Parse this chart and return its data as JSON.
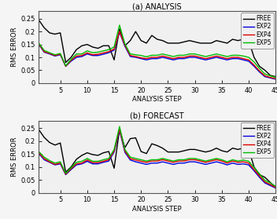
{
  "x": [
    1,
    2,
    3,
    4,
    5,
    6,
    7,
    8,
    9,
    10,
    11,
    12,
    13,
    14,
    15,
    16,
    17,
    18,
    19,
    20,
    21,
    22,
    23,
    24,
    25,
    26,
    27,
    28,
    29,
    30,
    31,
    32,
    33,
    34,
    35,
    36,
    37,
    38,
    39,
    40,
    41,
    42,
    43,
    44,
    45
  ],
  "analysis": {
    "FREE": [
      0.245,
      0.215,
      0.195,
      0.19,
      0.195,
      0.08,
      0.1,
      0.13,
      0.145,
      0.15,
      0.14,
      0.135,
      0.145,
      0.145,
      0.09,
      0.21,
      0.145,
      0.165,
      0.2,
      0.165,
      0.155,
      0.185,
      0.17,
      0.165,
      0.155,
      0.155,
      0.155,
      0.16,
      0.165,
      0.16,
      0.155,
      0.155,
      0.155,
      0.165,
      0.16,
      0.155,
      0.17,
      0.165,
      0.17,
      0.165,
      0.1,
      0.065,
      0.05,
      0.03,
      0.025
    ],
    "EXP2": [
      0.15,
      0.12,
      0.113,
      0.105,
      0.11,
      0.065,
      0.085,
      0.1,
      0.103,
      0.113,
      0.107,
      0.107,
      0.112,
      0.118,
      0.128,
      0.198,
      0.143,
      0.103,
      0.1,
      0.095,
      0.09,
      0.095,
      0.095,
      0.1,
      0.095,
      0.09,
      0.095,
      0.095,
      0.1,
      0.1,
      0.095,
      0.09,
      0.095,
      0.1,
      0.095,
      0.09,
      0.095,
      0.095,
      0.09,
      0.085,
      0.065,
      0.043,
      0.025,
      0.02,
      0.015
    ],
    "EXP4": [
      0.152,
      0.122,
      0.115,
      0.107,
      0.112,
      0.065,
      0.088,
      0.105,
      0.107,
      0.117,
      0.11,
      0.112,
      0.117,
      0.122,
      0.132,
      0.2,
      0.147,
      0.107,
      0.103,
      0.098,
      0.095,
      0.1,
      0.1,
      0.105,
      0.1,
      0.095,
      0.1,
      0.1,
      0.105,
      0.105,
      0.1,
      0.095,
      0.1,
      0.105,
      0.1,
      0.095,
      0.1,
      0.1,
      0.095,
      0.09,
      0.07,
      0.047,
      0.028,
      0.022,
      0.017
    ],
    "EXP5": [
      0.155,
      0.127,
      0.118,
      0.11,
      0.115,
      0.067,
      0.092,
      0.113,
      0.113,
      0.125,
      0.118,
      0.12,
      0.125,
      0.13,
      0.14,
      0.225,
      0.152,
      0.113,
      0.11,
      0.107,
      0.102,
      0.108,
      0.108,
      0.113,
      0.108,
      0.103,
      0.108,
      0.108,
      0.113,
      0.113,
      0.108,
      0.103,
      0.108,
      0.113,
      0.108,
      0.103,
      0.108,
      0.108,
      0.105,
      0.1,
      0.082,
      0.057,
      0.035,
      0.028,
      0.022
    ]
  },
  "forecast": {
    "FREE": [
      0.245,
      0.215,
      0.195,
      0.185,
      0.193,
      0.08,
      0.1,
      0.13,
      0.145,
      0.155,
      0.148,
      0.145,
      0.155,
      0.16,
      0.095,
      0.245,
      0.175,
      0.21,
      0.213,
      0.16,
      0.152,
      0.19,
      0.183,
      0.173,
      0.158,
      0.158,
      0.158,
      0.163,
      0.168,
      0.168,
      0.163,
      0.158,
      0.163,
      0.173,
      0.163,
      0.158,
      0.173,
      0.168,
      0.173,
      0.168,
      0.1,
      0.07,
      0.06,
      0.04,
      0.02
    ],
    "EXP2": [
      0.152,
      0.128,
      0.118,
      0.108,
      0.112,
      0.07,
      0.09,
      0.108,
      0.112,
      0.122,
      0.112,
      0.112,
      0.118,
      0.123,
      0.158,
      0.243,
      0.157,
      0.127,
      0.12,
      0.115,
      0.11,
      0.115,
      0.115,
      0.12,
      0.115,
      0.11,
      0.115,
      0.115,
      0.12,
      0.12,
      0.115,
      0.11,
      0.115,
      0.12,
      0.115,
      0.108,
      0.115,
      0.11,
      0.112,
      0.108,
      0.085,
      0.06,
      0.038,
      0.028,
      0.018
    ],
    "EXP4": [
      0.155,
      0.132,
      0.12,
      0.11,
      0.115,
      0.072,
      0.093,
      0.112,
      0.115,
      0.127,
      0.117,
      0.117,
      0.122,
      0.128,
      0.162,
      0.247,
      0.162,
      0.132,
      0.127,
      0.122,
      0.118,
      0.123,
      0.123,
      0.128,
      0.123,
      0.118,
      0.123,
      0.123,
      0.128,
      0.128,
      0.123,
      0.118,
      0.123,
      0.128,
      0.123,
      0.115,
      0.123,
      0.118,
      0.12,
      0.115,
      0.09,
      0.065,
      0.042,
      0.032,
      0.02
    ],
    "EXP5": [
      0.16,
      0.138,
      0.125,
      0.115,
      0.12,
      0.075,
      0.097,
      0.118,
      0.122,
      0.133,
      0.122,
      0.122,
      0.128,
      0.133,
      0.168,
      0.257,
      0.168,
      0.138,
      0.133,
      0.128,
      0.123,
      0.128,
      0.128,
      0.133,
      0.128,
      0.123,
      0.128,
      0.128,
      0.133,
      0.133,
      0.128,
      0.123,
      0.128,
      0.133,
      0.128,
      0.12,
      0.128,
      0.123,
      0.127,
      0.122,
      0.098,
      0.073,
      0.048,
      0.038,
      0.025
    ]
  },
  "colors": {
    "FREE": "#000000",
    "EXP2": "#0000dd",
    "EXP4": "#dd0000",
    "EXP5": "#00bb00"
  },
  "title_analysis": "(a) ANALYSIS",
  "title_forecast": "(b) FORECAST",
  "xlabel": "ANALYSIS STEP",
  "ylabel": "RMS ERROR",
  "xlim": [
    1,
    45
  ],
  "ylim": [
    0,
    0.28
  ],
  "xticks": [
    5,
    10,
    15,
    20,
    25,
    30,
    35,
    40,
    45
  ],
  "ytick_vals": [
    0,
    0.05,
    0.1,
    0.15,
    0.2,
    0.25
  ],
  "ytick_labels": [
    "0",
    "0.05",
    "0.1",
    "0.15",
    "0.2",
    "0.25"
  ],
  "legend_labels": [
    "FREE",
    "EXP2",
    "EXP4",
    "EXP5"
  ],
  "linewidth": 1.0
}
